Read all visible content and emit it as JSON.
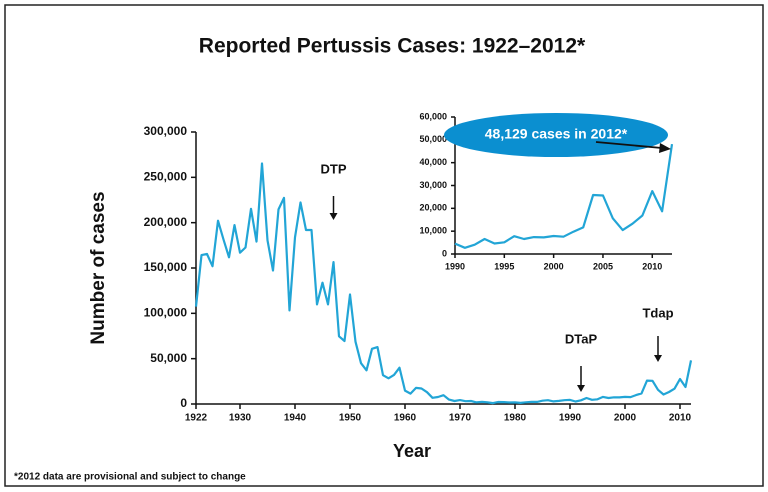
{
  "chart_data": [
    {
      "type": "line",
      "title": "Reported Pertussis Cases: 1922–2012*",
      "x_label": "Year",
      "y_label": "Number of cases",
      "footnote": "*2012 data are provisional and subject to change",
      "color": "#22a5d6",
      "x": [
        1922,
        1923,
        1924,
        1925,
        1926,
        1927,
        1928,
        1929,
        1930,
        1931,
        1932,
        1933,
        1934,
        1935,
        1936,
        1937,
        1938,
        1939,
        1940,
        1941,
        1942,
        1943,
        1944,
        1945,
        1946,
        1947,
        1948,
        1949,
        1950,
        1951,
        1952,
        1953,
        1954,
        1955,
        1956,
        1957,
        1958,
        1959,
        1960,
        1961,
        1962,
        1963,
        1964,
        1965,
        1966,
        1967,
        1968,
        1969,
        1970,
        1971,
        1972,
        1973,
        1974,
        1975,
        1976,
        1977,
        1978,
        1979,
        1980,
        1981,
        1982,
        1983,
        1984,
        1985,
        1986,
        1987,
        1988,
        1989,
        1990,
        1991,
        1992,
        1993,
        1994,
        1995,
        1996,
        1997,
        1998,
        1999,
        2000,
        2001,
        2002,
        2003,
        2004,
        2005,
        2006,
        2007,
        2008,
        2009,
        2010,
        2011,
        2012
      ],
      "values": [
        107473,
        164191,
        165418,
        152003,
        202210,
        181411,
        161799,
        197371,
        166914,
        172559,
        215343,
        179135,
        265269,
        180518,
        147237,
        214652,
        227319,
        103188,
        183866,
        222202,
        191890,
        191943,
        109873,
        133792,
        109860,
        156517,
        74715,
        69479,
        120718,
        68687,
        45030,
        37129,
        60886,
        62786,
        31732,
        28295,
        32148,
        40005,
        14809,
        11468,
        17749,
        17135,
        13005,
        6799,
        7717,
        9718,
        4810,
        3285,
        4249,
        3036,
        3287,
        1759,
        2402,
        1738,
        1010,
        2177,
        2063,
        1623,
        1730,
        1248,
        1895,
        2463,
        2276,
        3589,
        4195,
        2823,
        3450,
        4157,
        4570,
        2719,
        4083,
        6586,
        4617,
        5137,
        7796,
        6564,
        7405,
        7288,
        7867,
        7580,
        9771,
        11647,
        25827,
        25616,
        15632,
        10454,
        13278,
        16858,
        27550,
        18719,
        48129
      ],
      "xlim": [
        1922,
        2012
      ],
      "xticks": [
        1922,
        1930,
        1940,
        1950,
        1960,
        1970,
        1980,
        1990,
        2000,
        2010
      ],
      "ylim": [
        0,
        300000
      ],
      "yticks": [
        0,
        {
          "value": 50000,
          "label": "50,000"
        },
        {
          "value": 100000,
          "label": "100,000"
        },
        {
          "value": 150000,
          "label": "150,000"
        },
        {
          "value": 200000,
          "label": "200,000"
        },
        {
          "value": 250000,
          "label": "250,000"
        },
        {
          "value": 300000,
          "label": "300,000"
        }
      ],
      "annotations": [
        {
          "text": "DTP",
          "x": 1947
        },
        {
          "text": "DTaP",
          "x": 1992
        },
        {
          "text": "Tdap",
          "x": 2006
        }
      ]
    },
    {
      "type": "line",
      "annotation": "48,129 cases in 2012*",
      "color": "#22a5d6",
      "x": [
        1990,
        1991,
        1992,
        1993,
        1994,
        1995,
        1996,
        1997,
        1998,
        1999,
        2000,
        2001,
        2002,
        2003,
        2004,
        2005,
        2006,
        2007,
        2008,
        2009,
        2010,
        2011,
        2012
      ],
      "values": [
        4570,
        2719,
        4083,
        6586,
        4617,
        5137,
        7796,
        6564,
        7405,
        7288,
        7867,
        7580,
        9771,
        11647,
        25827,
        25616,
        15632,
        10454,
        13278,
        16858,
        27550,
        18719,
        48129
      ],
      "xlim": [
        1990,
        2012
      ],
      "xticks": [
        1990,
        1995,
        2000,
        2005,
        2010
      ],
      "ylim": [
        0,
        60000
      ],
      "yticks": [
        0,
        {
          "value": 10000,
          "label": "10,000"
        },
        {
          "value": 20000,
          "label": "20,000"
        },
        {
          "value": 30000,
          "label": "30,000"
        },
        {
          "value": 40000,
          "label": "40,000"
        },
        {
          "value": 50000,
          "label": "50,000"
        },
        {
          "value": 60000,
          "label": "60,000"
        }
      ]
    }
  ]
}
